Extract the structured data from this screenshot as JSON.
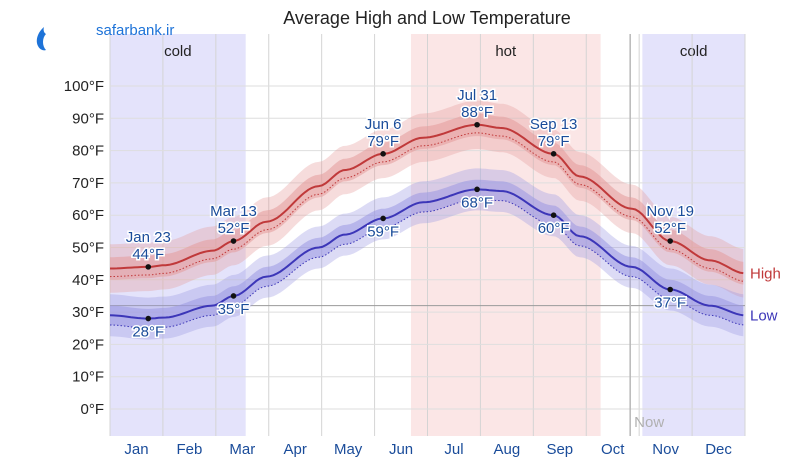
{
  "watermark": {
    "text": "safarbank.ir",
    "brand_color": "#1e73d8"
  },
  "chart_data": {
    "type": "area",
    "title": "Average High and Low Temperature",
    "ylim": [
      -10,
      110
    ],
    "y_ticks": [
      {
        "value": 0,
        "label": "0°F"
      },
      {
        "value": 10,
        "label": "10°F"
      },
      {
        "value": 20,
        "label": "20°F"
      },
      {
        "value": 30,
        "label": "30°F"
      },
      {
        "value": 40,
        "label": "40°F"
      },
      {
        "value": 50,
        "label": "50°F"
      },
      {
        "value": 60,
        "label": "60°F"
      },
      {
        "value": 70,
        "label": "70°F"
      },
      {
        "value": 80,
        "label": "80°F"
      },
      {
        "value": 90,
        "label": "90°F"
      },
      {
        "value": 100,
        "label": "100°F"
      }
    ],
    "months": [
      "Jan",
      "Feb",
      "Mar",
      "Apr",
      "May",
      "Jun",
      "Jul",
      "Aug",
      "Sep",
      "Oct",
      "Nov",
      "Dec"
    ],
    "seasons": [
      {
        "name": "cold",
        "start_day": 0,
        "end_day": 78,
        "color": "#e4e3fb"
      },
      {
        "name": "hot",
        "start_day": 173,
        "end_day": 282,
        "color": "#fbe6e6"
      },
      {
        "name": "cold",
        "start_day": 306,
        "end_day": 365,
        "color": "#e4e3fb"
      }
    ],
    "now": {
      "day": 299,
      "label": "Now"
    },
    "freezing": 32,
    "series": [
      {
        "name": "High",
        "color": "#c0393a",
        "band_color": "#e49a9a",
        "days": [
          0,
          22,
          31,
          59,
          71,
          90,
          120,
          135,
          157,
          180,
          211,
          225,
          255,
          270,
          300,
          322,
          345,
          365
        ],
        "values": [
          43.5,
          44,
          44.5,
          49,
          52,
          58,
          69,
          74,
          79,
          84,
          88,
          87,
          79,
          72,
          62,
          52,
          46,
          42
        ],
        "p25_offset": -3.5,
        "p75_offset": 3.5,
        "p10_offset": -7.5,
        "p90_offset": 7.5,
        "dotted_offset": -2.5
      },
      {
        "name": "Low",
        "color": "#3c36b8",
        "band_color": "#9a98e2",
        "days": [
          0,
          22,
          31,
          59,
          71,
          90,
          120,
          135,
          157,
          180,
          211,
          225,
          255,
          270,
          300,
          322,
          345,
          365
        ],
        "values": [
          29,
          28,
          28.3,
          32,
          35,
          41,
          50,
          54,
          59,
          64,
          68,
          67.5,
          60,
          53.5,
          44,
          37,
          32,
          29
        ],
        "p25_offset": -3,
        "p75_offset": 3,
        "p10_offset": -6.5,
        "p90_offset": 6.5,
        "dotted_offset": -3
      }
    ],
    "annotations": [
      {
        "series": "High",
        "day": 22,
        "value": 44,
        "date": "Jan 23",
        "temp": "44°F",
        "place": "above",
        "color": "#1a4c9a"
      },
      {
        "series": "High",
        "day": 71,
        "value": 52,
        "date": "Mar 13",
        "temp": "52°F",
        "place": "above",
        "color": "#1a4c9a"
      },
      {
        "series": "High",
        "day": 157,
        "value": 79,
        "date": "Jun 6",
        "temp": "79°F",
        "place": "above",
        "color": "#1a4c9a"
      },
      {
        "series": "High",
        "day": 211,
        "value": 88,
        "date": "Jul 31",
        "temp": "88°F",
        "place": "above",
        "color": "#1a4c9a"
      },
      {
        "series": "High",
        "day": 255,
        "value": 79,
        "date": "Sep 13",
        "temp": "79°F",
        "place": "above",
        "color": "#1a4c9a"
      },
      {
        "series": "High",
        "day": 322,
        "value": 52,
        "date": "Nov 19",
        "temp": "52°F",
        "place": "above",
        "color": "#1a4c9a"
      },
      {
        "series": "Low",
        "day": 22,
        "value": 28,
        "temp": "28°F",
        "place": "below",
        "color": "#1a4c9a"
      },
      {
        "series": "Low",
        "day": 71,
        "value": 35,
        "temp": "35°F",
        "place": "below",
        "color": "#1a4c9a"
      },
      {
        "series": "Low",
        "day": 157,
        "value": 59,
        "temp": "59°F",
        "place": "below",
        "color": "#1a4c9a"
      },
      {
        "series": "Low",
        "day": 211,
        "value": 68,
        "temp": "68°F",
        "place": "below",
        "color": "#1a4c9a"
      },
      {
        "series": "Low",
        "day": 255,
        "value": 60,
        "temp": "60°F",
        "place": "below",
        "color": "#1a4c9a"
      },
      {
        "series": "Low",
        "day": 322,
        "value": 37,
        "temp": "37°F",
        "place": "below",
        "color": "#1a4c9a"
      }
    ],
    "legend": [
      {
        "label": "High",
        "color": "#c0393a"
      },
      {
        "label": "Low",
        "color": "#3c36b8"
      }
    ]
  }
}
